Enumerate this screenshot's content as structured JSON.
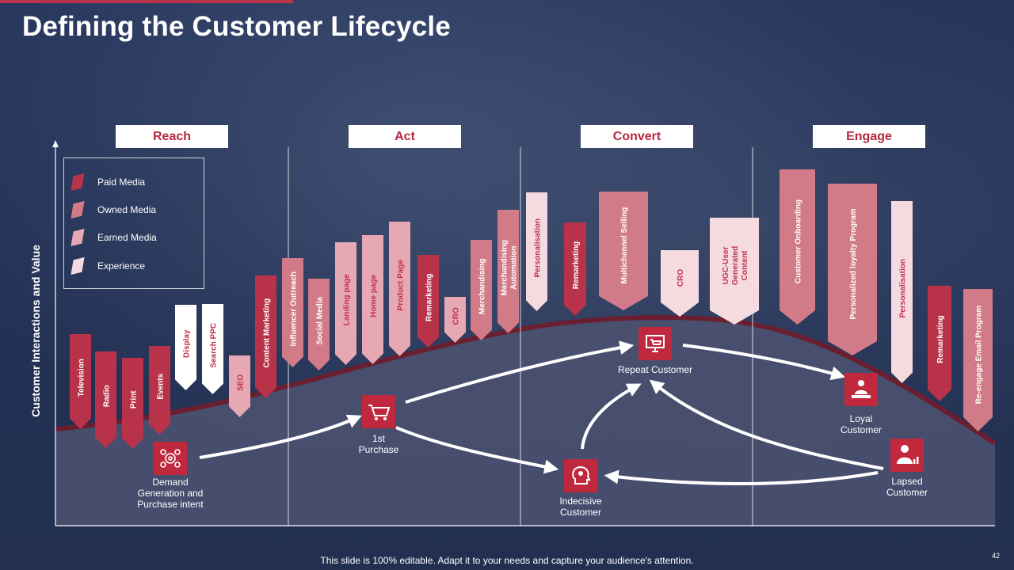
{
  "title": "Defining the Customer Lifecycle",
  "phases": [
    "Reach",
    "Act",
    "Convert",
    "Engage"
  ],
  "y_axis_label": "Customer Interactions and Value",
  "legend": [
    {
      "label": "Paid Media",
      "color": "#b8334a"
    },
    {
      "label": "Owned Media",
      "color": "#d17b88"
    },
    {
      "label": "Earned Media",
      "color": "#e6a9b4"
    },
    {
      "label": "Experience",
      "color": "#f5dbe0"
    }
  ],
  "channels": [
    {
      "label": "Television",
      "type": "paid"
    },
    {
      "label": "Radio",
      "type": "paid"
    },
    {
      "label": "Print",
      "type": "paid"
    },
    {
      "label": "Events",
      "type": "paid"
    },
    {
      "label": "Display",
      "type": "white"
    },
    {
      "label": "Search PPC",
      "type": "white"
    },
    {
      "label": "SEO",
      "type": "earned"
    },
    {
      "label": "Content Marketing",
      "type": "paid"
    },
    {
      "label": "Influencer Outreach",
      "type": "owned"
    },
    {
      "label": "Social Media",
      "type": "owned"
    },
    {
      "label": "Landing page",
      "type": "earned"
    },
    {
      "label": "Home page",
      "type": "earned"
    },
    {
      "label": "Product Page",
      "type": "earned"
    },
    {
      "label": "Remarketing",
      "type": "paid"
    },
    {
      "label": "CRO",
      "type": "earned"
    },
    {
      "label": "Merchandising",
      "type": "owned"
    },
    {
      "label": "Merchandising Automation",
      "type": "owned"
    },
    {
      "label": "Personalisation",
      "type": "experience"
    },
    {
      "label": "Remarketing",
      "type": "paid"
    },
    {
      "label": "Multichannel Selling",
      "type": "owned"
    },
    {
      "label": "CRO",
      "type": "experience"
    },
    {
      "label": "UGC-User Generated Content",
      "type": "experience"
    },
    {
      "label": "Customer Onboarding",
      "type": "owned"
    },
    {
      "label": "Personalized loyalty Program",
      "type": "owned"
    },
    {
      "label": "Personalisation",
      "type": "experience"
    },
    {
      "label": "Remarketing",
      "type": "paid"
    },
    {
      "label": "Re-engage Email Program",
      "type": "owned"
    }
  ],
  "stages": [
    {
      "label": "Demand\nGeneration and\nPurchase intent",
      "icon": "gears-icon"
    },
    {
      "label": "1st\nPurchase",
      "icon": "shopping-cart-icon"
    },
    {
      "label": "Indecisive\nCustomer",
      "icon": "thinking-head-icon"
    },
    {
      "label": "Repeat Customer",
      "icon": "computer-checkout-icon"
    },
    {
      "label": "Loyal\nCustomer",
      "icon": "person-desk-icon"
    },
    {
      "label": "Lapsed\nCustomer",
      "icon": "person-chart-icon"
    }
  ],
  "footer": "This slide is 100% editable. Adapt it to your needs and capture your audience's attention.",
  "page_number": "42",
  "colors": {
    "background": "#233256",
    "accent": "#b9334c",
    "curve_fill": "#4b5270",
    "curve_edge": "#6a1f31",
    "paid": "#b8334a",
    "owned": "#d17b88",
    "earned": "#e6a9b4",
    "experience": "#f5dbe0",
    "white": "#ffffff"
  }
}
